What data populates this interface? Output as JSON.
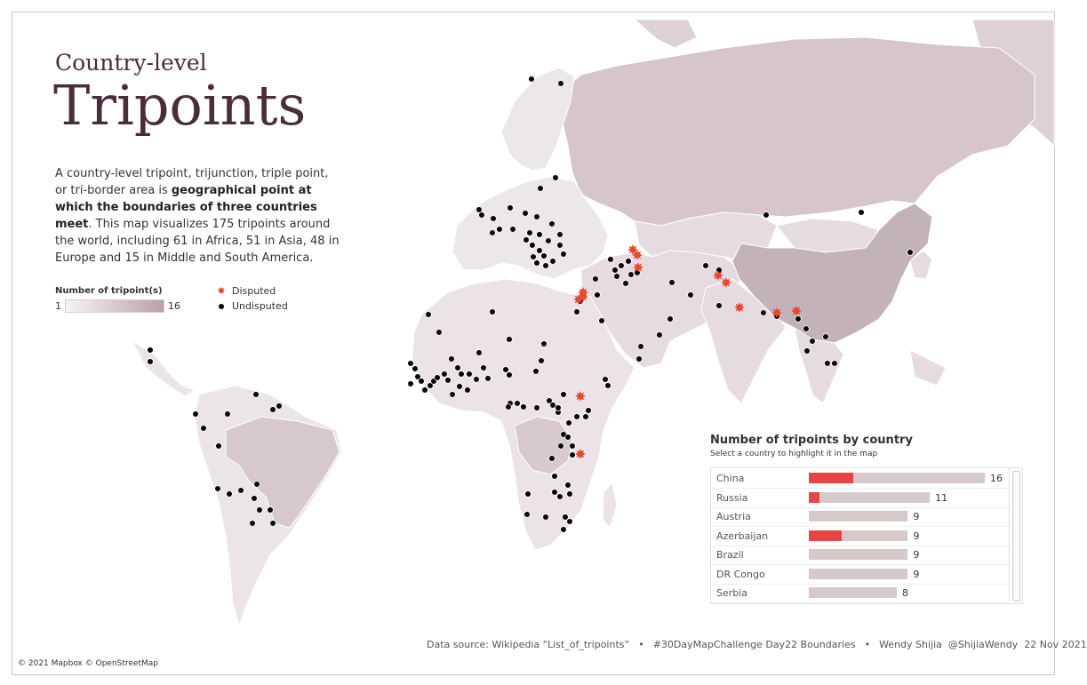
{
  "header": {
    "subtitle": "Country-level",
    "title": "Tripoints"
  },
  "description": {
    "part1": "A country-level tripoint, trijunction, triple point, or tri-border area is ",
    "bold": "geographical point at which the boundaries of three countries meet",
    "part2": ". This map visualizes 175 tripoints around the world, including 61 in Africa, 51 in Asia, 48 in Europe and 15 in Middle and South America."
  },
  "legend": {
    "scale_title": "Number of tripoint(s)",
    "scale_min": "1",
    "scale_max": "16",
    "disputed_label": "Disputed",
    "undisputed_label": "Undisputed",
    "colors": {
      "disputed": "#e64a2e",
      "undisputed": "#000000",
      "scale_low": "#f7f4f5",
      "scale_high": "#b8a0aa"
    }
  },
  "panel": {
    "title": "Number of tripoints by country",
    "subtitle": "Select a country to highlight it in the map",
    "max_value": 16,
    "rows": [
      {
        "country": "China",
        "value": 16,
        "disputed": 4
      },
      {
        "country": "Russia",
        "value": 11,
        "disputed": 1
      },
      {
        "country": "Austria",
        "value": 9,
        "disputed": 0
      },
      {
        "country": "Azerbaijan",
        "value": 9,
        "disputed": 3
      },
      {
        "country": "Brazil",
        "value": 9,
        "disputed": 0
      },
      {
        "country": "DR Congo",
        "value": 9,
        "disputed": 0
      },
      {
        "country": "Serbia",
        "value": 8,
        "disputed": 0
      }
    ]
  },
  "footer": {
    "source": "Data source: Wikipedia “List_of_tripoints”",
    "challenge": "#30DayMapChallenge Day22 Boundaries",
    "author": "Wendy Shijia",
    "handle": "@ShijiaWendy",
    "date": "22 Nov 2021",
    "separator": "•"
  },
  "attribution": "© 2021 Mapbox © OpenStreetMap"
}
